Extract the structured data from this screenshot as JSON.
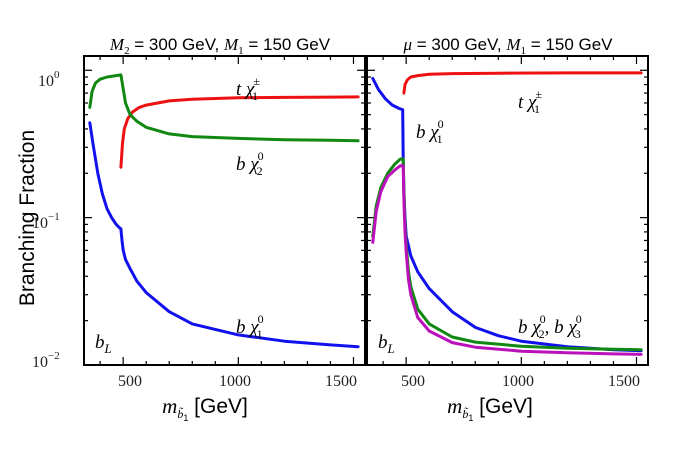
{
  "figure": {
    "ylabel": "Branching Fraction",
    "xlabel_math": "m",
    "xlabel_sub": "b̃",
    "xlabel_sub2": "1",
    "xlabel_unit": " [GeV]",
    "y_ticks": [
      {
        "base": "10",
        "exp": "0"
      },
      {
        "base": "10",
        "exp": "−1"
      },
      {
        "base": "10",
        "exp": "−2"
      }
    ]
  },
  "chart_data": [
    {
      "type": "line",
      "title": "M2 = 300 GeV, M1 = 150 GeV",
      "title_parts": {
        "a": "M",
        "a_sub": "2",
        "b": " = 300 GeV, ",
        "c": "M",
        "c_sub": "1",
        "d": " = 150 GeV"
      },
      "corner_label": {
        "main": "b",
        "sub": "L"
      },
      "xlim": [
        330,
        1550
      ],
      "ylim": [
        0.01,
        1.25
      ],
      "yscale": "log",
      "x_ticks": [
        "500",
        "1000",
        "1500"
      ],
      "series": [
        {
          "name": "t χ1±",
          "color": "#ee1111",
          "label_parts": {
            "main": "t χ",
            "sup": "±",
            "sub": "1"
          },
          "x": [
            490,
            497,
            505,
            520,
            540,
            570,
            600,
            700,
            800,
            1000,
            1200,
            1400,
            1520
          ],
          "y": [
            0.22,
            0.32,
            0.4,
            0.47,
            0.52,
            0.56,
            0.58,
            0.62,
            0.635,
            0.65,
            0.655,
            0.658,
            0.66
          ]
        },
        {
          "name": "b χ2⁰",
          "color": "#118811",
          "label_parts": {
            "main": "b χ",
            "sup": "0",
            "sub": "2"
          },
          "x": [
            355,
            365,
            380,
            400,
            430,
            470,
            490,
            500,
            510,
            530,
            560,
            600,
            700,
            800,
            1000,
            1200,
            1400,
            1520
          ],
          "y": [
            0.56,
            0.72,
            0.82,
            0.87,
            0.9,
            0.92,
            0.93,
            0.75,
            0.6,
            0.5,
            0.45,
            0.41,
            0.37,
            0.355,
            0.345,
            0.338,
            0.335,
            0.333
          ]
        },
        {
          "name": "b χ1⁰",
          "color": "#1111ee",
          "label_parts": {
            "main": "b χ",
            "sup": "0",
            "sub": "1"
          },
          "x": [
            355,
            370,
            390,
            410,
            430,
            450,
            470,
            485,
            490,
            495,
            500,
            510,
            530,
            560,
            600,
            700,
            800,
            1000,
            1200,
            1400,
            1520
          ],
          "y": [
            0.44,
            0.31,
            0.2,
            0.145,
            0.115,
            0.1,
            0.09,
            0.085,
            0.084,
            0.07,
            0.06,
            0.052,
            0.045,
            0.037,
            0.031,
            0.023,
            0.019,
            0.016,
            0.0145,
            0.0137,
            0.0133
          ]
        }
      ]
    },
    {
      "type": "line",
      "title": "μ = 300 GeV, M1 = 150 GeV",
      "title_parts": {
        "a": "μ",
        "a_sub": "",
        "b": " = 300 GeV, ",
        "c": "M",
        "c_sub": "1",
        "d": " = 150 GeV"
      },
      "corner_label": {
        "main": "b",
        "sub": "L"
      },
      "xlim": [
        330,
        1550
      ],
      "ylim": [
        0.01,
        1.25
      ],
      "yscale": "log",
      "x_ticks": [
        "500",
        "1000",
        "1500"
      ],
      "series": [
        {
          "name": "t χ1±",
          "color": "#ee1111",
          "label_parts": {
            "main": "t χ",
            "sup": "±",
            "sub": "1"
          },
          "x": [
            490,
            495,
            505,
            520,
            550,
            600,
            700,
            900,
            1200,
            1520
          ],
          "y": [
            0.7,
            0.8,
            0.86,
            0.9,
            0.92,
            0.94,
            0.95,
            0.955,
            0.96,
            0.96
          ]
        },
        {
          "name": "b χ1⁰",
          "color": "#1111ee",
          "label_parts": {
            "main": "b χ",
            "sup": "0",
            "sub": "1"
          },
          "x": [
            355,
            380,
            410,
            440,
            470,
            485,
            487,
            490,
            495,
            500,
            520,
            550,
            600,
            700,
            800,
            900,
            1000,
            1200,
            1400,
            1520
          ],
          "y": [
            0.88,
            0.74,
            0.64,
            0.58,
            0.55,
            0.54,
            0.25,
            0.15,
            0.1,
            0.075,
            0.055,
            0.043,
            0.033,
            0.023,
            0.018,
            0.0158,
            0.0145,
            0.0133,
            0.0127,
            0.0125
          ]
        },
        {
          "name": "b χ2⁰",
          "color": "#118811",
          "label_parts": {
            "main": "b χ",
            "sup": "0",
            "sub": "2"
          },
          "x": [
            355,
            370,
            390,
            420,
            450,
            475,
            487,
            490,
            495,
            500,
            510,
            520,
            550,
            600,
            700,
            800,
            1000,
            1200,
            1400,
            1520
          ],
          "y": [
            0.075,
            0.12,
            0.16,
            0.2,
            0.23,
            0.25,
            0.25,
            0.15,
            0.09,
            0.065,
            0.043,
            0.034,
            0.024,
            0.019,
            0.0155,
            0.0143,
            0.0134,
            0.013,
            0.0128,
            0.0127
          ]
        },
        {
          "name": "b χ3⁰",
          "color": "#bb11bb",
          "label_parts": {
            "main": "b χ",
            "sup": "0",
            "sub": "2",
            "tail_main": ", b χ",
            "tail_sup": "0",
            "tail_sub": "3"
          },
          "x": [
            355,
            370,
            390,
            420,
            450,
            475,
            487,
            490,
            495,
            500,
            510,
            520,
            550,
            600,
            700,
            800,
            1000,
            1200,
            1400,
            1520
          ],
          "y": [
            0.068,
            0.11,
            0.15,
            0.19,
            0.21,
            0.225,
            0.225,
            0.13,
            0.08,
            0.058,
            0.038,
            0.03,
            0.021,
            0.017,
            0.0142,
            0.0132,
            0.0124,
            0.0121,
            0.0119,
            0.0118
          ]
        }
      ]
    }
  ]
}
